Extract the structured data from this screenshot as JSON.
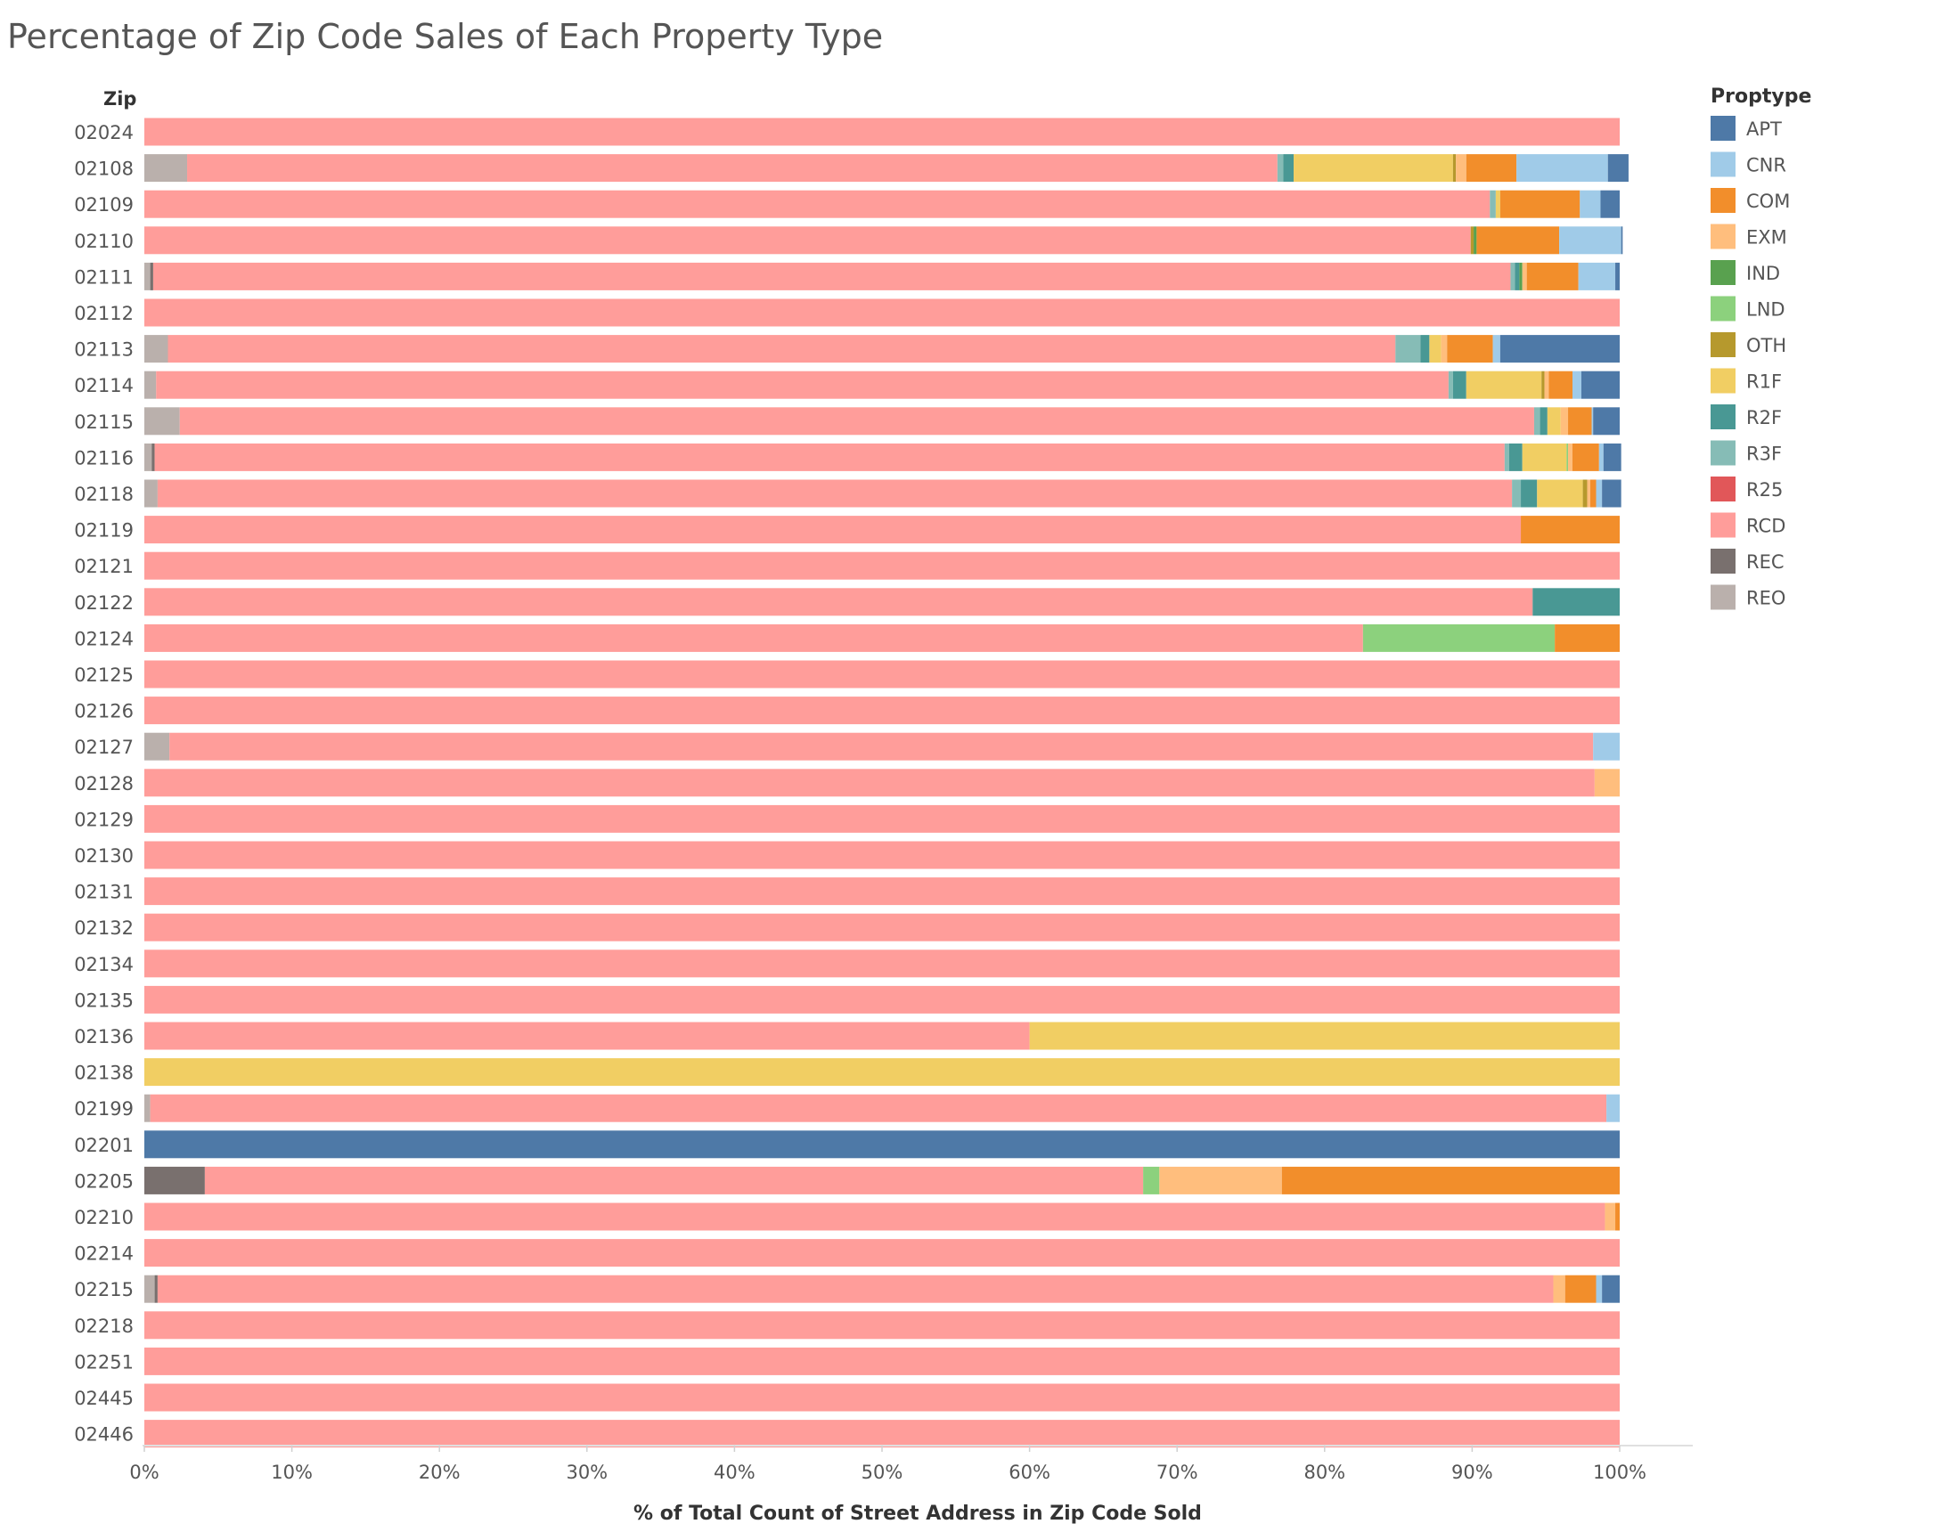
{
  "chart_data": {
    "type": "bar",
    "orientation": "horizontal",
    "stacked": true,
    "title": "Percentage of Zip Code Sales of Each Property Type",
    "row_header": "Zip",
    "xlabel": "% of Total Count of Street Address in Zip Code Sold",
    "xlim": [
      0,
      100
    ],
    "xticks": [
      "0%",
      "10%",
      "20%",
      "30%",
      "40%",
      "50%",
      "60%",
      "70%",
      "80%",
      "90%",
      "100%"
    ],
    "grid": false,
    "legend_title": "Proptype",
    "legend_position": "right",
    "stack_order": [
      "REO",
      "REC",
      "RCD",
      "R25",
      "R3F",
      "R2F",
      "R1F",
      "OTH",
      "LND",
      "IND",
      "EXM",
      "COM",
      "CNR",
      "APT"
    ],
    "legend": [
      {
        "name": "APT",
        "color": "#4e79a7"
      },
      {
        "name": "CNR",
        "color": "#a0cbe8"
      },
      {
        "name": "COM",
        "color": "#f28e2b"
      },
      {
        "name": "EXM",
        "color": "#ffbe7d"
      },
      {
        "name": "IND",
        "color": "#59a14f"
      },
      {
        "name": "LND",
        "color": "#8cd17d"
      },
      {
        "name": "OTH",
        "color": "#b6992d"
      },
      {
        "name": "R1F",
        "color": "#f1ce63"
      },
      {
        "name": "R2F",
        "color": "#499894"
      },
      {
        "name": "R3F",
        "color": "#86bcb6"
      },
      {
        "name": "R25",
        "color": "#e15759"
      },
      {
        "name": "RCD",
        "color": "#ff9d9a"
      },
      {
        "name": "REC",
        "color": "#79706e"
      },
      {
        "name": "REO",
        "color": "#bab0ac"
      }
    ],
    "rows": [
      {
        "zip": "02024",
        "segments": {
          "RCD": 100
        }
      },
      {
        "zip": "02108",
        "segments": {
          "REO": 2.9,
          "RCD": 73.9,
          "R3F": 0.4,
          "R2F": 0.7,
          "R1F": 10.8,
          "OTH": 0.2,
          "EXM": 0.7,
          "COM": 3.4,
          "CNR": 6.2,
          "APT": 1.4
        }
      },
      {
        "zip": "02109",
        "segments": {
          "RCD": 91.2,
          "R3F": 0.4,
          "R1F": 0.3,
          "COM": 5.4,
          "CNR": 1.4,
          "APT": 1.3
        }
      },
      {
        "zip": "02110",
        "segments": {
          "RCD": 89.9,
          "IND": 0.2,
          "OTH": 0.2,
          "COM": 5.6,
          "CNR": 4.2,
          "APT": 0.1
        }
      },
      {
        "zip": "02111",
        "segments": {
          "REO": 0.4,
          "REC": 0.2,
          "RCD": 92.0,
          "R3F": 0.3,
          "R2F": 0.3,
          "IND": 0.2,
          "EXM": 0.3,
          "COM": 3.5,
          "CNR": 2.5,
          "APT": 0.3
        }
      },
      {
        "zip": "02112",
        "segments": {
          "RCD": 100
        }
      },
      {
        "zip": "02113",
        "segments": {
          "REO": 1.6,
          "RCD": 83.2,
          "R3F": 1.7,
          "R2F": 0.6,
          "R1F": 0.8,
          "EXM": 0.4,
          "COM": 3.1,
          "CNR": 0.5,
          "APT": 8.1
        }
      },
      {
        "zip": "02114",
        "segments": {
          "REO": 0.8,
          "RCD": 87.6,
          "R3F": 0.3,
          "R2F": 0.9,
          "R1F": 5.1,
          "OTH": 0.2,
          "EXM": 0.3,
          "COM": 1.6,
          "CNR": 0.6,
          "APT": 2.6
        }
      },
      {
        "zip": "02115",
        "segments": {
          "REO": 2.4,
          "RCD": 91.8,
          "R3F": 0.4,
          "R2F": 0.5,
          "R1F": 0.9,
          "EXM": 0.5,
          "COM": 1.6,
          "CNR": 0.1,
          "APT": 1.8
        }
      },
      {
        "zip": "02116",
        "segments": {
          "REO": 0.5,
          "REC": 0.2,
          "RCD": 91.5,
          "R3F": 0.3,
          "R2F": 0.9,
          "R1F": 3.0,
          "LND": 0.1,
          "EXM": 0.3,
          "COM": 1.8,
          "CNR": 0.3,
          "APT": 1.2
        }
      },
      {
        "zip": "02118",
        "segments": {
          "REO": 0.9,
          "RCD": 91.8,
          "R3F": 0.6,
          "R2F": 1.1,
          "R1F": 3.1,
          "OTH": 0.3,
          "EXM": 0.2,
          "COM": 0.4,
          "CNR": 0.4,
          "APT": 1.3
        }
      },
      {
        "zip": "02119",
        "segments": {
          "RCD": 93.3,
          "COM": 6.7
        }
      },
      {
        "zip": "02121",
        "segments": {
          "RCD": 100
        }
      },
      {
        "zip": "02122",
        "segments": {
          "RCD": 94.1,
          "R2F": 5.9
        }
      },
      {
        "zip": "02124",
        "segments": {
          "RCD": 82.6,
          "LND": 13.0,
          "COM": 4.4
        }
      },
      {
        "zip": "02125",
        "segments": {
          "RCD": 100
        }
      },
      {
        "zip": "02126",
        "segments": {
          "RCD": 100
        }
      },
      {
        "zip": "02127",
        "segments": {
          "REO": 1.7,
          "RCD": 96.5,
          "CNR": 1.8
        }
      },
      {
        "zip": "02128",
        "segments": {
          "RCD": 98.3,
          "EXM": 1.7
        }
      },
      {
        "zip": "02129",
        "segments": {
          "RCD": 100
        }
      },
      {
        "zip": "02130",
        "segments": {
          "RCD": 100
        }
      },
      {
        "zip": "02131",
        "segments": {
          "RCD": 100
        }
      },
      {
        "zip": "02132",
        "segments": {
          "RCD": 100
        }
      },
      {
        "zip": "02134",
        "segments": {
          "RCD": 100
        }
      },
      {
        "zip": "02135",
        "segments": {
          "RCD": 100
        }
      },
      {
        "zip": "02136",
        "segments": {
          "RCD": 60.0,
          "R1F": 40.0
        }
      },
      {
        "zip": "02138",
        "segments": {
          "R1F": 100
        }
      },
      {
        "zip": "02199",
        "segments": {
          "REO": 0.4,
          "RCD": 98.7,
          "CNR": 0.9
        }
      },
      {
        "zip": "02201",
        "segments": {
          "APT": 100
        }
      },
      {
        "zip": "02205",
        "segments": {
          "REC": 4.1,
          "RCD": 63.6,
          "LND": 1.1,
          "EXM": 8.3,
          "COM": 22.9
        }
      },
      {
        "zip": "02210",
        "segments": {
          "RCD": 99.0,
          "EXM": 0.7,
          "COM": 0.3
        }
      },
      {
        "zip": "02214",
        "segments": {
          "RCD": 100
        }
      },
      {
        "zip": "02215",
        "segments": {
          "REO": 0.7,
          "REC": 0.2,
          "RCD": 94.6,
          "EXM": 0.8,
          "COM": 2.1,
          "CNR": 0.4,
          "APT": 1.2
        }
      },
      {
        "zip": "02218",
        "segments": {
          "RCD": 100
        }
      },
      {
        "zip": "02251",
        "segments": {
          "RCD": 100
        }
      },
      {
        "zip": "02445",
        "segments": {
          "RCD": 100
        }
      },
      {
        "zip": "02446",
        "segments": {
          "RCD": 100
        }
      }
    ]
  }
}
